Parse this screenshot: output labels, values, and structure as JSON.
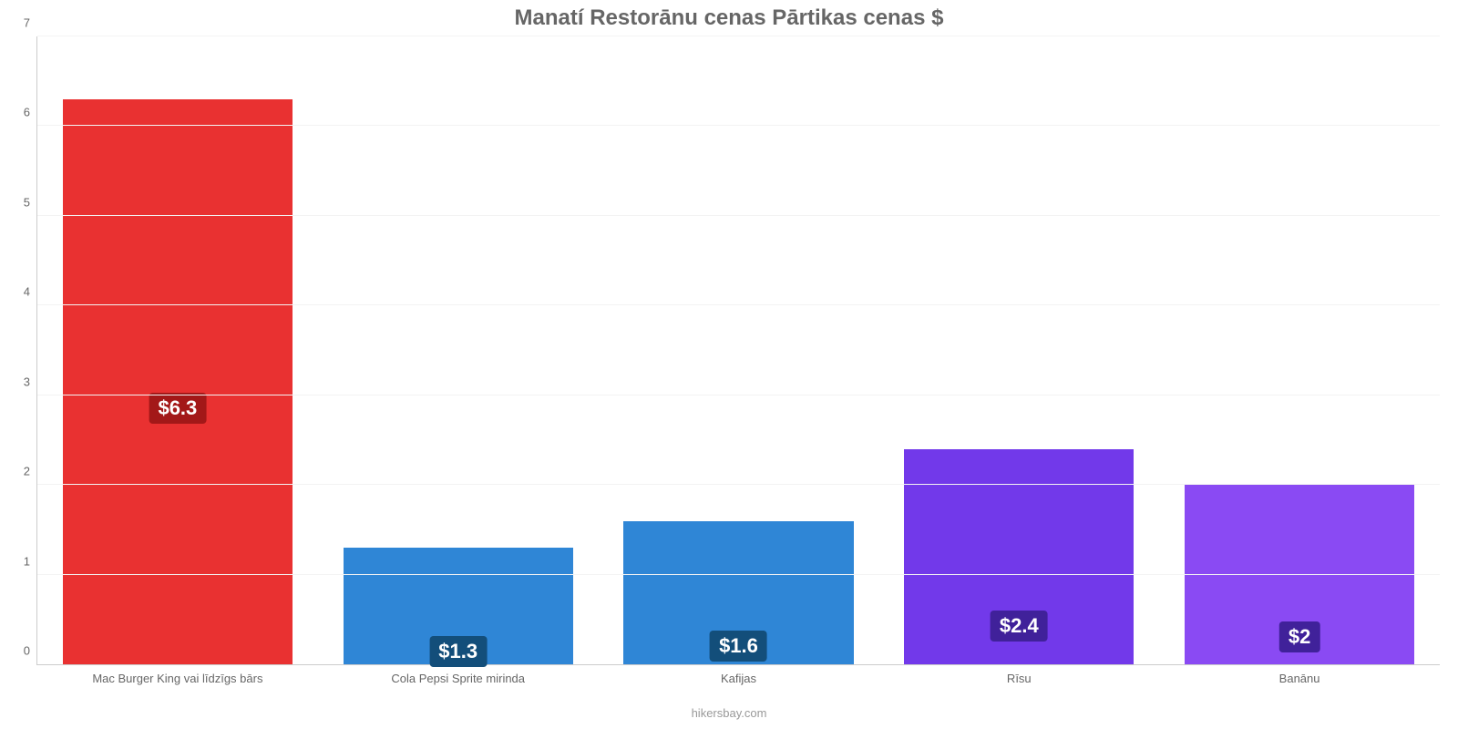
{
  "chart": {
    "type": "bar",
    "title": "Manatí Restorānu cenas Pārtikas cenas $",
    "title_fontsize": 24,
    "title_color": "#666666",
    "background_color": "#ffffff",
    "axis_color": "#cccccc",
    "grid_color": "#f3f3f3",
    "tick_label_color": "#666666",
    "tick_label_fontsize": 13,
    "credit_text": "hikersbay.com",
    "credit_color": "#999999",
    "ylim": [
      0,
      7
    ],
    "yticks": [
      0,
      1,
      2,
      3,
      4,
      5,
      6,
      7
    ],
    "bar_width_ratio": 0.82,
    "value_label_fontsize": 22,
    "categories": [
      "Mac Burger King vai līdzīgs bārs",
      "Cola Pepsi Sprite mirinda",
      "Kafijas",
      "Rīsu",
      "Banānu"
    ],
    "values": [
      6.3,
      1.3,
      1.6,
      2.4,
      2.0
    ],
    "value_labels": [
      "$6.3",
      "$1.3",
      "$1.6",
      "$2.4",
      "$2"
    ],
    "bar_colors": [
      "#e93131",
      "#2f86d6",
      "#2f86d6",
      "#7239ea",
      "#8a4af3"
    ],
    "value_label_bg_colors": [
      "#a31818",
      "#134e7a",
      "#134e7a",
      "#40219a",
      "#40219a"
    ],
    "value_label_text_color": "#ffffff"
  }
}
